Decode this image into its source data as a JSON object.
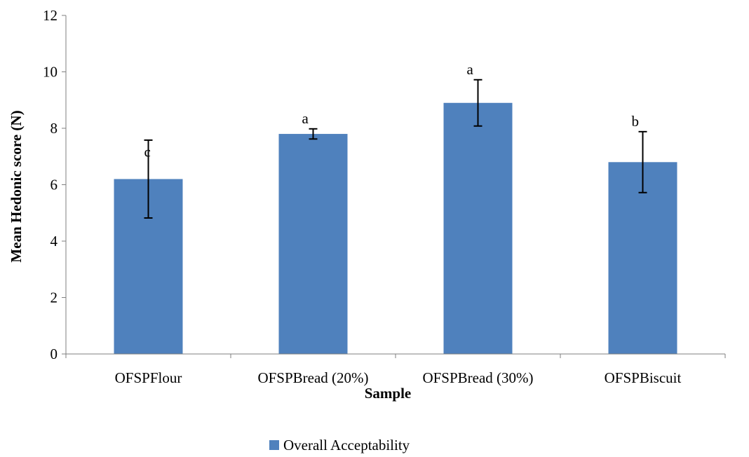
{
  "chart_data": {
    "type": "bar",
    "xlabel": "Sample",
    "ylabel": "Mean Hedonic  score (N)",
    "ylim": [
      0,
      12
    ],
    "ytick_step": 2,
    "yticks": [
      "0",
      "2",
      "4",
      "6",
      "8",
      "10",
      "12"
    ],
    "categories": [
      "OFSPFlour",
      "OFSPBread (20%)",
      "OFSPBread (30%)",
      "OFSPBiscuit"
    ],
    "series": [
      {
        "name": "Overall Acceptability",
        "color": "#4f81bd",
        "values": [
          6.2,
          7.8,
          8.9,
          6.8
        ],
        "error_low": [
          4.82,
          7.62,
          8.08,
          5.72
        ],
        "error_high": [
          7.58,
          7.98,
          9.72,
          7.88
        ],
        "significance": [
          "c",
          "a",
          "a",
          "b"
        ]
      }
    ],
    "grid": false,
    "legend_position": "bottom"
  }
}
